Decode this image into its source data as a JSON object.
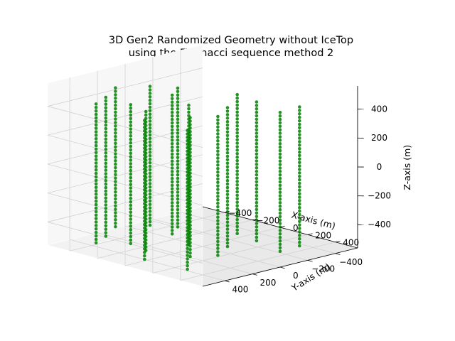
{
  "chart_data": {
    "type": "scatter3d",
    "title": [
      "3D Gen2 Randomized Geometry without IceTop",
      "using the Fibonacci sequence method 2"
    ],
    "xlabel": "X-axis (m)",
    "ylabel": "Y-axis (m)",
    "zlabel": "Z-axis (m)",
    "xlim": [
      -560,
      560
    ],
    "ylim": [
      -560,
      560
    ],
    "zlim": [
      -560,
      560
    ],
    "xticks": [
      -400,
      -200,
      0,
      200,
      400
    ],
    "yticks": [
      -400,
      -200,
      0,
      200,
      400
    ],
    "zticks": [
      -400,
      -200,
      0,
      200,
      400
    ],
    "xtick_labels": [
      "−400",
      "−200",
      "0",
      "200",
      "400"
    ],
    "ytick_labels": [
      "−400",
      "−200",
      "0",
      "200",
      "400"
    ],
    "ztick_labels": [
      "−400",
      "−200",
      "0",
      "200",
      "400"
    ],
    "marker_color": "#008000",
    "grid": true,
    "z_range": [
      -480,
      480
    ],
    "strings": [
      {
        "x": -420,
        "y": 210
      },
      {
        "x": -320,
        "y": 380
      },
      {
        "x": -320,
        "y": 60
      },
      {
        "x": -260,
        "y": 510
      },
      {
        "x": -200,
        "y": -20
      },
      {
        "x": -120,
        "y": 100
      },
      {
        "x": -130,
        "y": 390
      },
      {
        "x": 20,
        "y": 430
      },
      {
        "x": 80,
        "y": 180
      },
      {
        "x": 100,
        "y": -150
      },
      {
        "x": 260,
        "y": 350
      },
      {
        "x": 250,
        "y": 70
      },
      {
        "x": 270,
        "y": -120
      },
      {
        "x": 340,
        "y": 230
      },
      {
        "x": 430,
        "y": 540
      },
      {
        "x": 490,
        "y": -210
      },
      {
        "x": 500,
        "y": -60
      },
      {
        "x": 140,
        "y": 560
      }
    ]
  }
}
